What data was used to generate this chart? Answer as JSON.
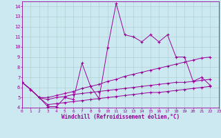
{
  "xlabel": "Windchill (Refroidissement éolien,°C)",
  "bg_color": "#cce8f0",
  "line_color": "#990099",
  "grid_color": "#aacccc",
  "xlim": [
    0,
    23
  ],
  "ylim": [
    4,
    14.5
  ],
  "xticks": [
    0,
    1,
    2,
    3,
    4,
    5,
    6,
    7,
    8,
    9,
    10,
    11,
    12,
    13,
    14,
    15,
    16,
    17,
    18,
    19,
    20,
    21,
    22,
    23
  ],
  "yticks": [
    4,
    5,
    6,
    7,
    8,
    9,
    10,
    11,
    12,
    13,
    14
  ],
  "series": [
    {
      "x": [
        0,
        1,
        2,
        3,
        4,
        5,
        6,
        7,
        8,
        9,
        10,
        11,
        12,
        13,
        14,
        15,
        16,
        17,
        18,
        19,
        20,
        21,
        22
      ],
      "y": [
        6.5,
        5.8,
        5.0,
        4.1,
        4.1,
        5.0,
        4.8,
        8.4,
        6.1,
        4.9,
        9.9,
        14.3,
        11.2,
        11.0,
        10.5,
        11.2,
        10.5,
        11.2,
        9.0,
        9.0,
        6.6,
        7.0,
        6.2
      ]
    },
    {
      "x": [
        0,
        1,
        2,
        3,
        4,
        5,
        6,
        7,
        8,
        9,
        10,
        11,
        12,
        13,
        14,
        15,
        16,
        17,
        18,
        19,
        20,
        21,
        22
      ],
      "y": [
        6.5,
        5.8,
        5.0,
        5.0,
        5.2,
        5.4,
        5.6,
        5.9,
        6.1,
        6.3,
        6.6,
        6.8,
        7.1,
        7.3,
        7.5,
        7.7,
        7.9,
        8.1,
        8.3,
        8.5,
        8.7,
        8.9,
        9.0
      ]
    },
    {
      "x": [
        0,
        1,
        2,
        3,
        4,
        5,
        6,
        7,
        8,
        9,
        10,
        11,
        12,
        13,
        14,
        15,
        16,
        17,
        18,
        19,
        20,
        21,
        22
      ],
      "y": [
        6.5,
        5.8,
        5.0,
        4.8,
        5.0,
        5.1,
        5.3,
        5.4,
        5.5,
        5.6,
        5.7,
        5.8,
        5.9,
        6.0,
        6.1,
        6.2,
        6.3,
        6.4,
        6.5,
        6.5,
        6.6,
        6.7,
        6.8
      ]
    },
    {
      "x": [
        0,
        1,
        2,
        3,
        4,
        5,
        6,
        7,
        8,
        9,
        10,
        11,
        12,
        13,
        14,
        15,
        16,
        17,
        18,
        19,
        20,
        21,
        22
      ],
      "y": [
        6.5,
        5.8,
        5.0,
        4.3,
        4.4,
        4.5,
        4.6,
        4.7,
        4.8,
        4.9,
        5.0,
        5.1,
        5.2,
        5.3,
        5.4,
        5.5,
        5.5,
        5.6,
        5.7,
        5.8,
        5.9,
        6.0,
        6.1
      ]
    }
  ]
}
